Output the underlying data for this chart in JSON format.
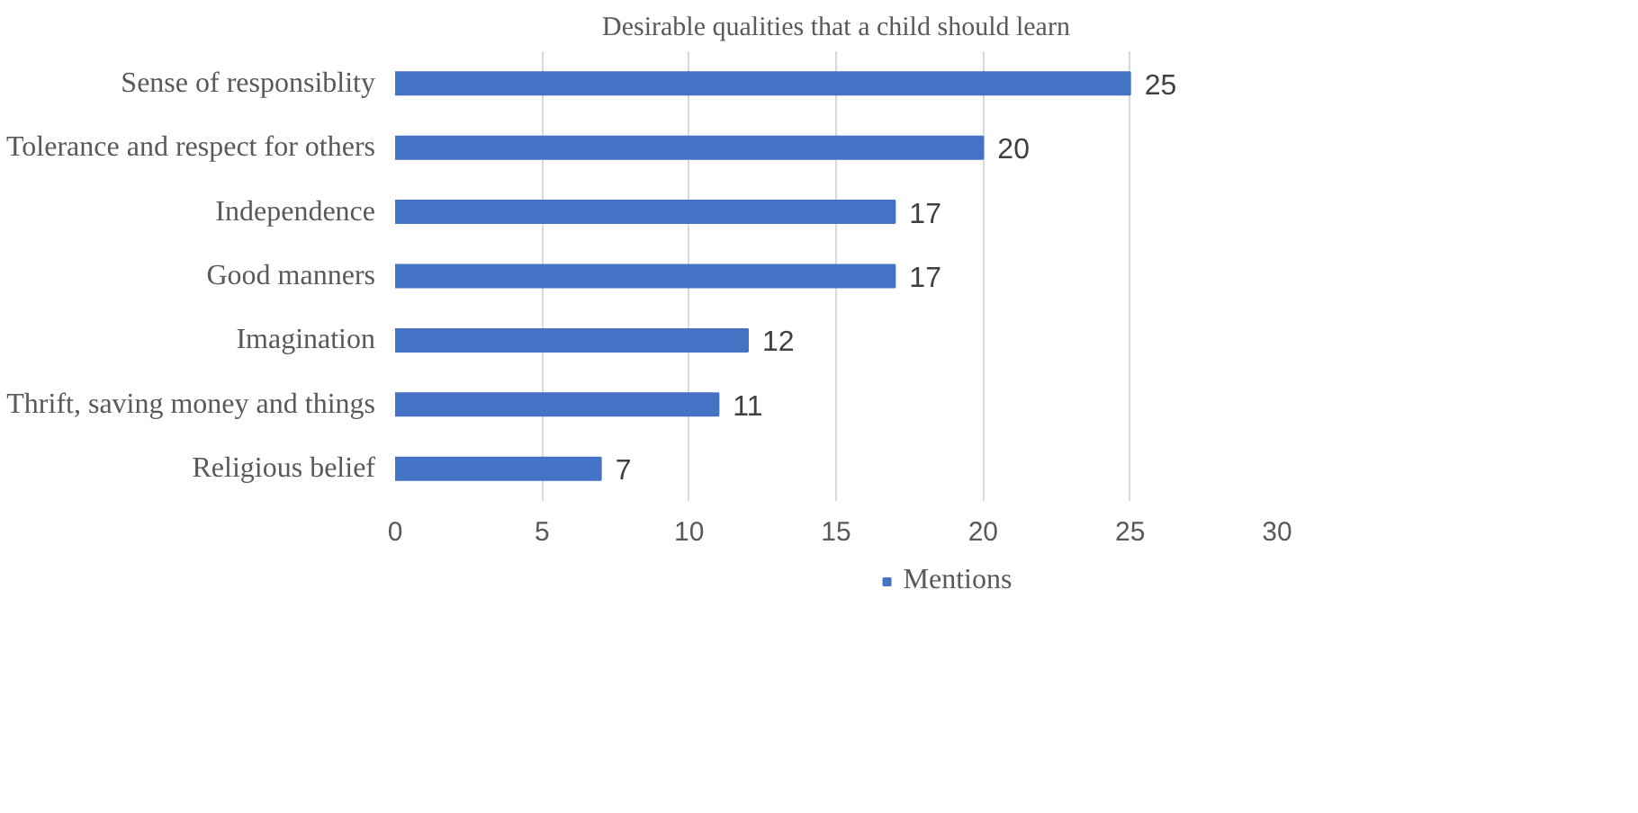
{
  "chart_data": {
    "type": "bar",
    "orientation": "horizontal",
    "title": "Desirable qualities that a child should learn",
    "categories": [
      "Sense of responsiblity",
      "Tolerance and respect for others",
      "Independence",
      "Good manners",
      "Imagination",
      "Thrift, saving money and things",
      "Religious belief"
    ],
    "series": [
      {
        "name": "Mentions",
        "color": "#4472c4",
        "values": [
          25,
          20,
          17,
          17,
          12,
          11,
          7
        ]
      }
    ],
    "xlim": [
      0,
      30
    ],
    "xticks": [
      0,
      5,
      10,
      15,
      20,
      25,
      30
    ],
    "grid": "x",
    "legend": "bottom",
    "data_labels": true
  }
}
